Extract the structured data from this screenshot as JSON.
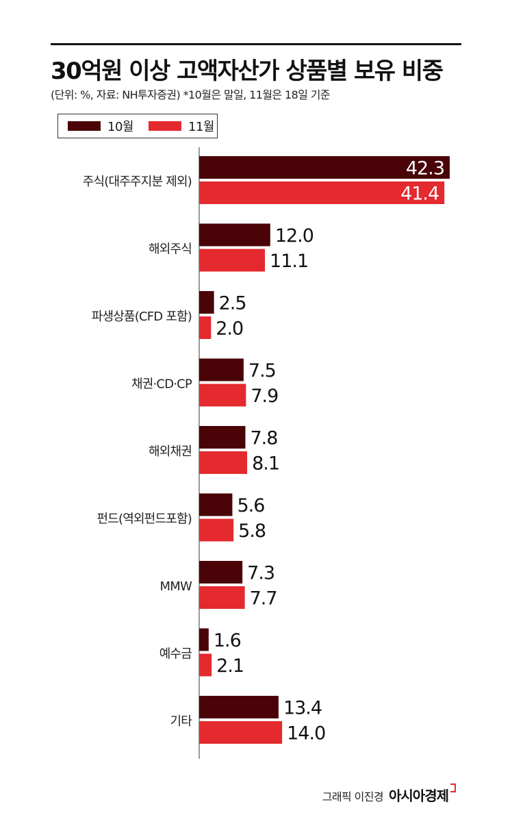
{
  "header": {
    "title": "30억원 이상 고액자산가 상품별 보유 비중",
    "subtitle": "(단위: %, 자료: NH투자증권) *10월은 말일, 11월은 18일 기준"
  },
  "footer": {
    "credit": "그래픽 이진경",
    "brand": "아시아경제"
  },
  "colors": {
    "oct": "#4a0407",
    "nov": "#e42a2f",
    "axis": "#9a9a9a"
  },
  "chart_data": {
    "type": "bar",
    "orientation": "horizontal",
    "title": "30억원 이상 고액자산가 상품별 보유 비중",
    "unit": "%",
    "categories": [
      "주식(대주주지분 제외)",
      "해외주식",
      "파생상품(CFD 포함)",
      "채권·CD·CP",
      "해외채권",
      "펀드(역외펀드포함)",
      "MMW",
      "예수금",
      "기타"
    ],
    "series": [
      {
        "name": "10월",
        "values": [
          42.3,
          12.0,
          2.5,
          7.5,
          7.8,
          5.6,
          7.3,
          1.6,
          13.4
        ],
        "labels": [
          "42.3",
          "12.0",
          "2.5",
          "7.5",
          "7.8",
          "5.6",
          "7.3",
          "1.6",
          "13.4"
        ]
      },
      {
        "name": "11월",
        "values": [
          41.4,
          11.1,
          2.0,
          7.9,
          8.1,
          5.8,
          7.7,
          2.1,
          14.0
        ],
        "labels": [
          "41.4",
          "11.1",
          "2.0",
          "7.9",
          "8.1",
          "5.8",
          "7.7",
          "2.1",
          "14.0"
        ]
      }
    ],
    "xlim": [
      0,
      42.3
    ],
    "grid": false,
    "legend": "top-left"
  }
}
